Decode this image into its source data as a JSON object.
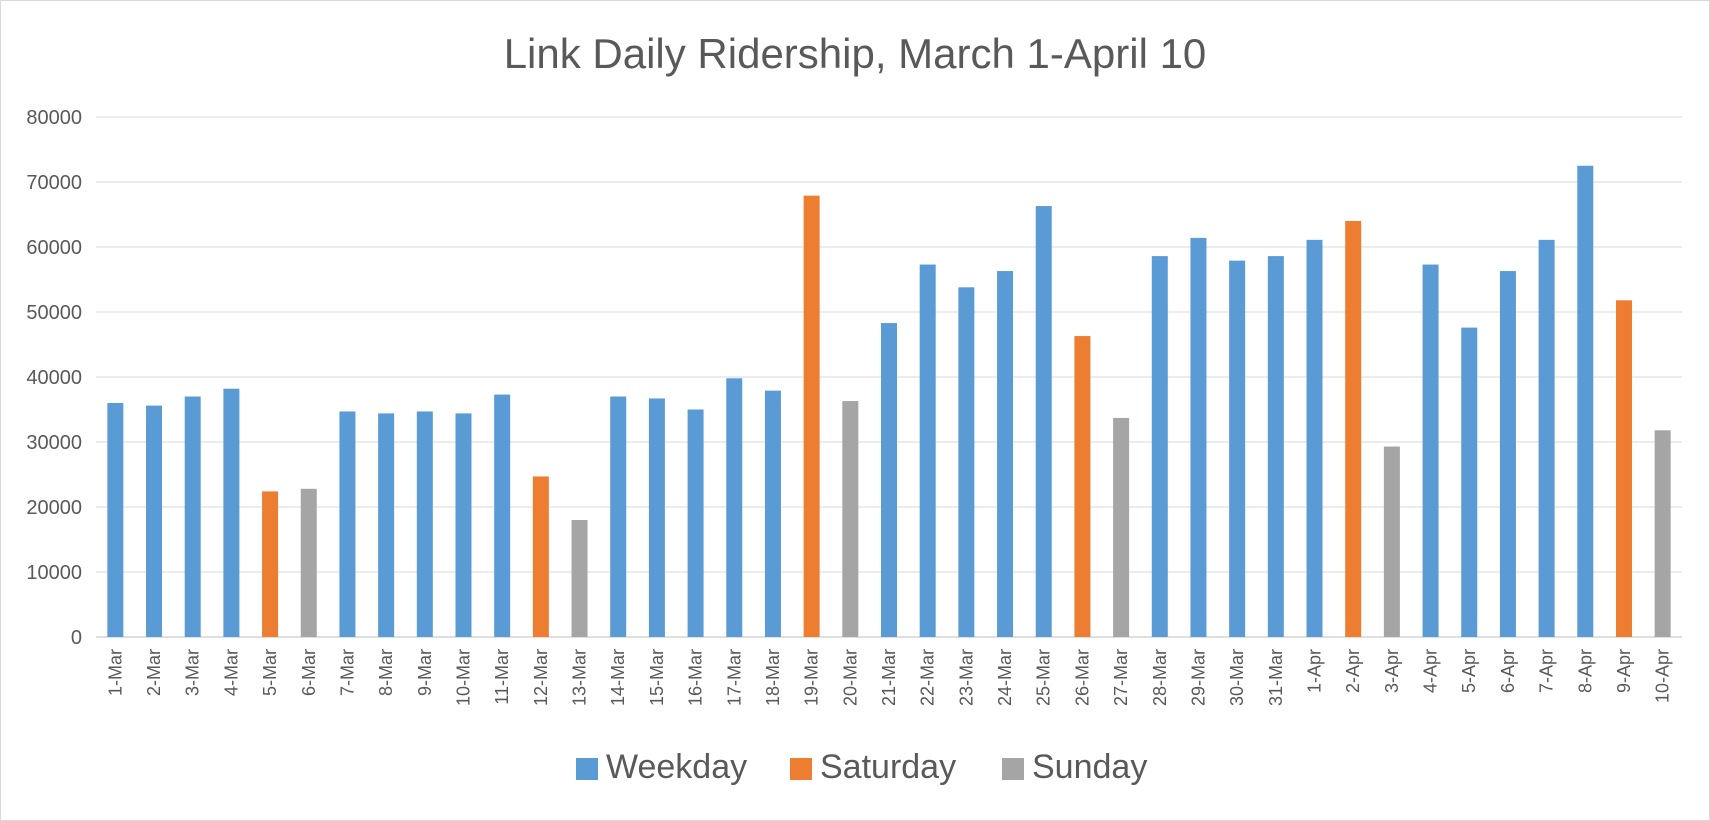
{
  "chart_data": {
    "type": "bar",
    "title": "Link Daily Ridership, March 1-April 10",
    "xlabel": "",
    "ylabel": "",
    "ylim": [
      0,
      80000
    ],
    "yticks": [
      0,
      10000,
      20000,
      30000,
      40000,
      50000,
      60000,
      70000,
      80000
    ],
    "grid": true,
    "legend_position": "bottom",
    "categories": [
      "1-Mar",
      "2-Mar",
      "3-Mar",
      "4-Mar",
      "5-Mar",
      "6-Mar",
      "7-Mar",
      "8-Mar",
      "9-Mar",
      "10-Mar",
      "11-Mar",
      "12-Mar",
      "13-Mar",
      "14-Mar",
      "15-Mar",
      "16-Mar",
      "17-Mar",
      "18-Mar",
      "19-Mar",
      "20-Mar",
      "21-Mar",
      "22-Mar",
      "23-Mar",
      "24-Mar",
      "25-Mar",
      "26-Mar",
      "27-Mar",
      "28-Mar",
      "29-Mar",
      "30-Mar",
      "31-Mar",
      "1-Apr",
      "2-Apr",
      "3-Apr",
      "4-Apr",
      "5-Apr",
      "6-Apr",
      "7-Apr",
      "8-Apr",
      "9-Apr",
      "10-Apr"
    ],
    "series": [
      {
        "name": "Weekday",
        "color": "#5b9bd5",
        "values": [
          36000,
          35600,
          37000,
          38200,
          null,
          null,
          34700,
          34400,
          34700,
          34400,
          37300,
          null,
          null,
          37000,
          36700,
          35000,
          39800,
          37900,
          null,
          null,
          48300,
          57300,
          53800,
          56300,
          66300,
          null,
          null,
          58600,
          61400,
          57900,
          58600,
          61100,
          null,
          null,
          57300,
          47600,
          56300,
          61100,
          72500,
          null,
          null
        ]
      },
      {
        "name": "Saturday",
        "color": "#ed7d31",
        "values": [
          null,
          null,
          null,
          null,
          22400,
          null,
          null,
          null,
          null,
          null,
          null,
          24700,
          null,
          null,
          null,
          null,
          null,
          null,
          67900,
          null,
          null,
          null,
          null,
          null,
          null,
          46300,
          null,
          null,
          null,
          null,
          null,
          null,
          64000,
          null,
          null,
          null,
          null,
          null,
          null,
          51800,
          null
        ]
      },
      {
        "name": "Sunday",
        "color": "#a5a5a5",
        "values": [
          null,
          null,
          null,
          null,
          null,
          22800,
          null,
          null,
          null,
          null,
          null,
          null,
          18000,
          null,
          null,
          null,
          null,
          null,
          null,
          36300,
          null,
          null,
          null,
          null,
          null,
          null,
          33700,
          null,
          null,
          null,
          null,
          null,
          null,
          29300,
          null,
          null,
          null,
          null,
          null,
          null,
          31800
        ]
      }
    ]
  }
}
